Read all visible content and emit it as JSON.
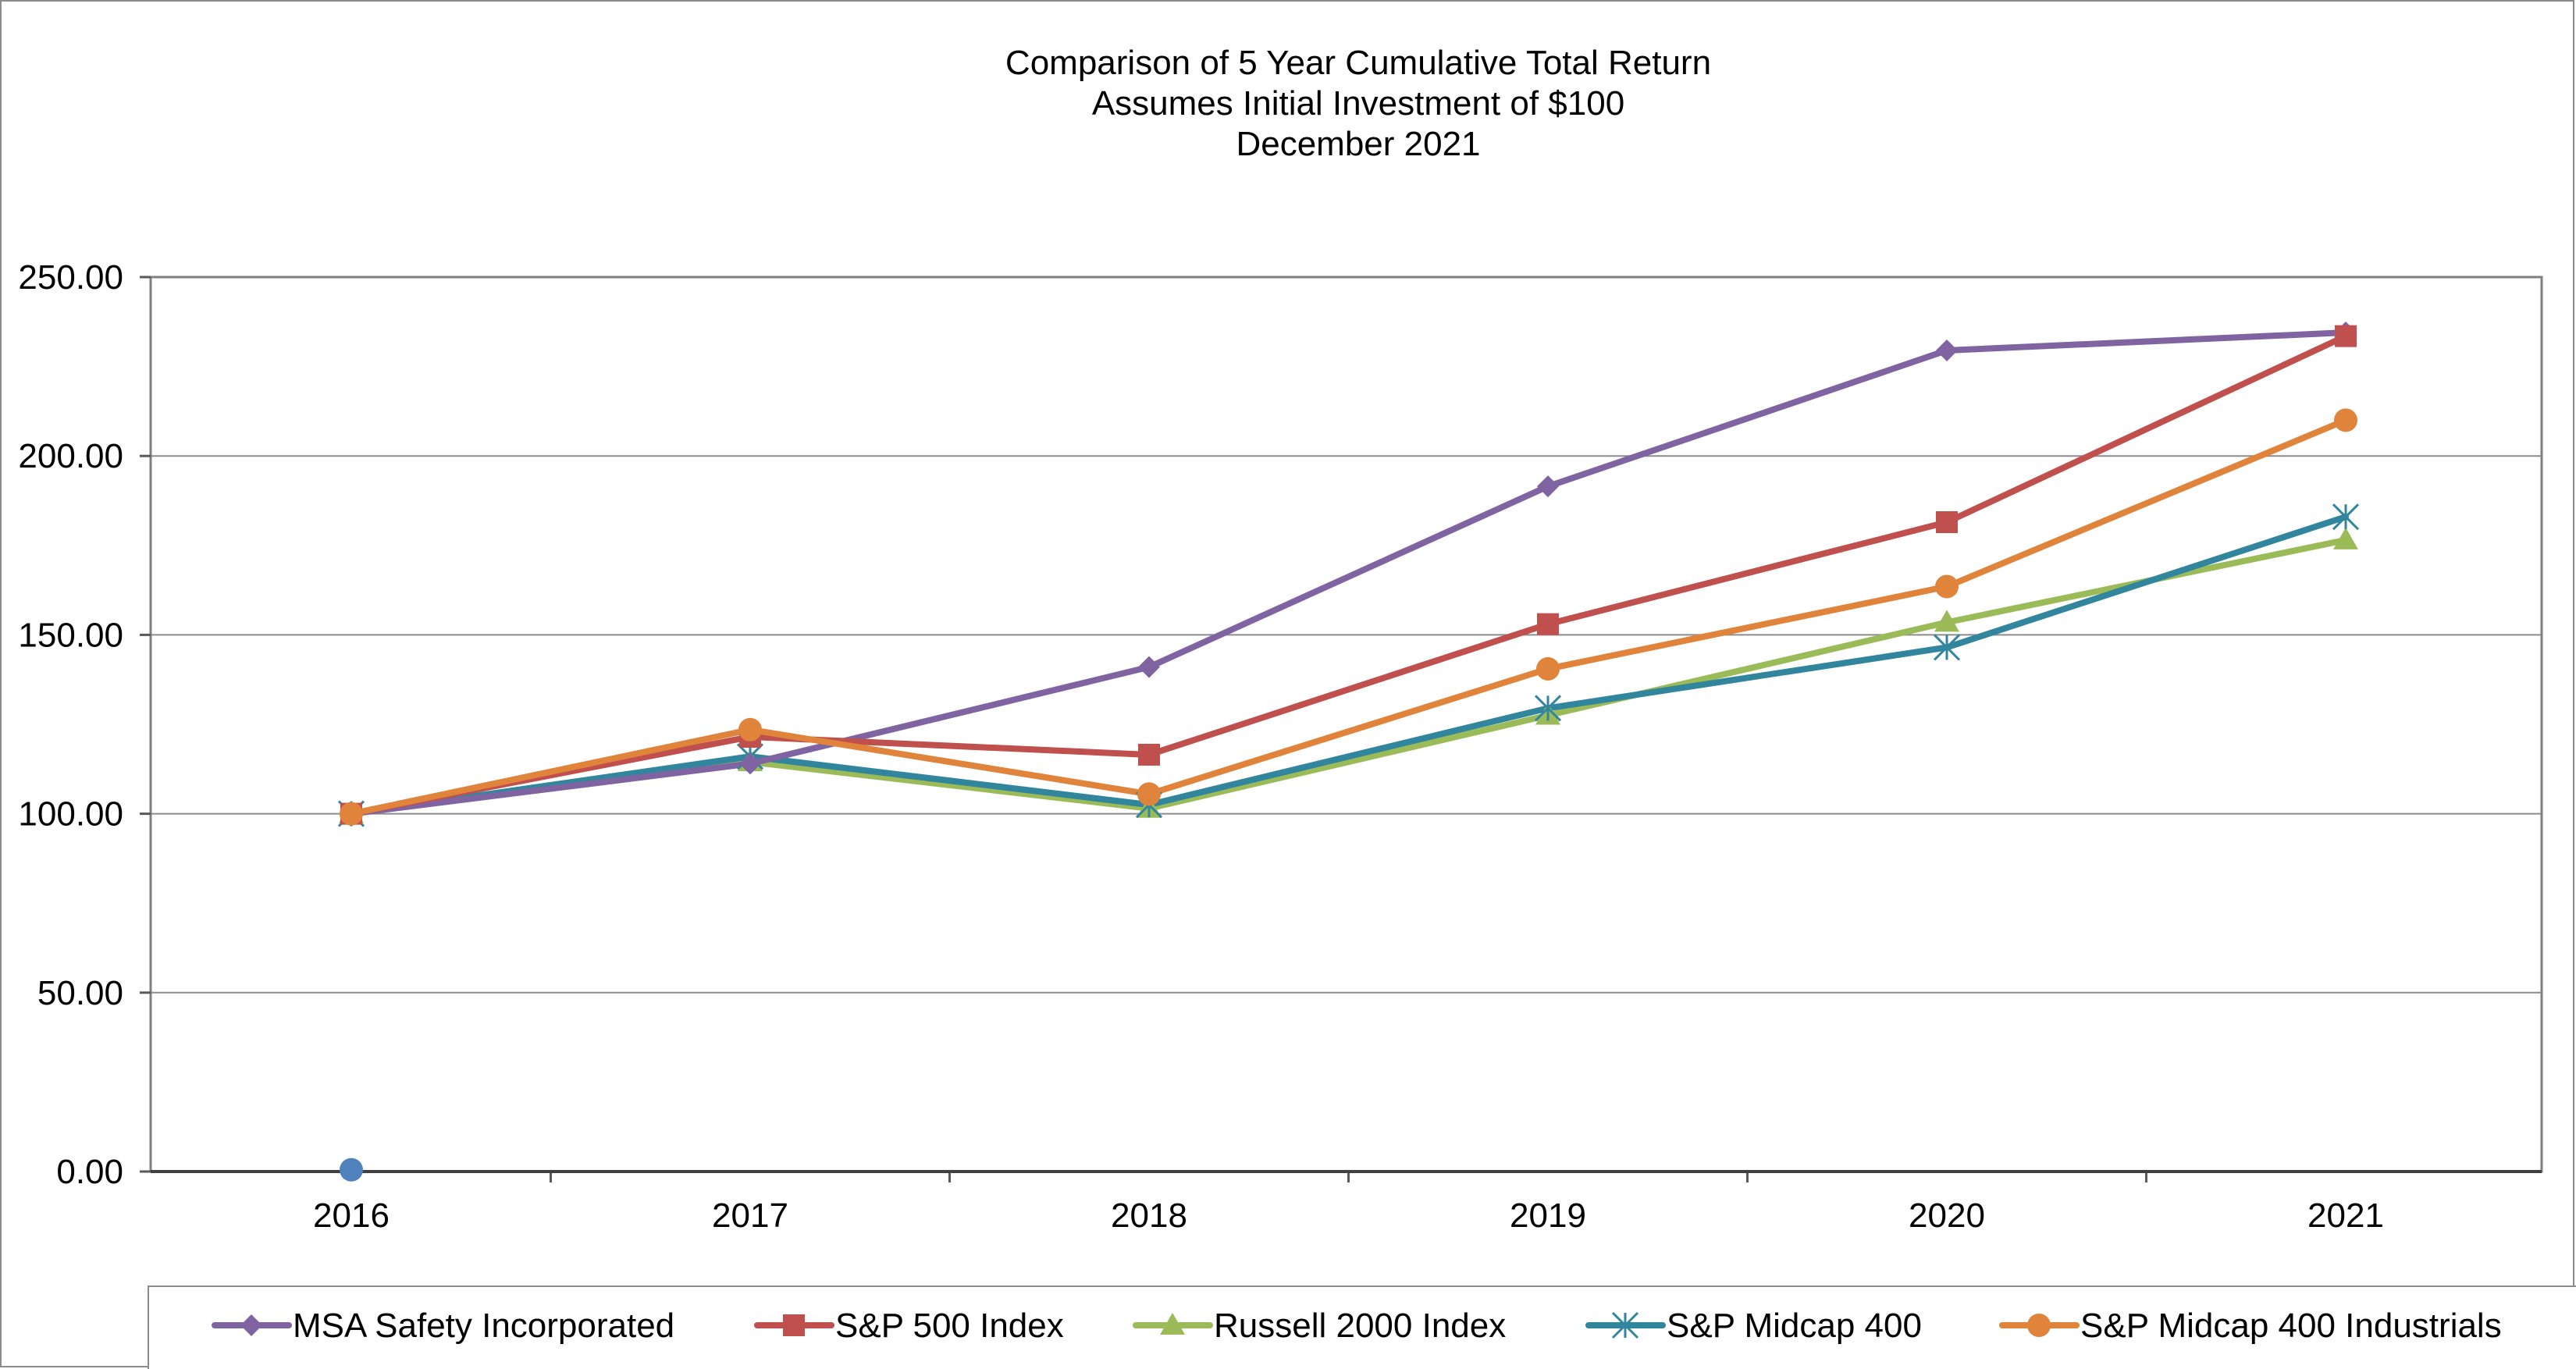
{
  "chart_data": {
    "type": "line",
    "title": "Comparison of 5 Year Cumulative Total Return",
    "subtitle": [
      "Assumes Initial Investment of $100",
      "December 2021"
    ],
    "xlabel": "",
    "ylabel": "",
    "x": [
      "2016",
      "2017",
      "2018",
      "2019",
      "2020",
      "2021"
    ],
    "ylim": [
      0,
      250
    ],
    "yticks": [
      "0.00",
      "50.00",
      "100.00",
      "150.00",
      "200.00",
      "250.00"
    ],
    "grid": true,
    "legend_position": "bottom",
    "series": [
      {
        "name": "MSA Safety Incorporated",
        "color": "#8064a2",
        "marker": "diamond",
        "values": [
          100,
          114,
          141,
          191.5,
          229.5,
          234.5
        ]
      },
      {
        "name": "S&P 500 Index",
        "color": "#c0504d",
        "marker": "square",
        "values": [
          100,
          121.5,
          116.5,
          153,
          181.5,
          233.5
        ]
      },
      {
        "name": "Russell 2000 Index",
        "color": "#9bbb59",
        "marker": "triangle",
        "values": [
          100,
          114.5,
          101.5,
          127.5,
          153.5,
          176.5
        ]
      },
      {
        "name": "S&P Midcap 400",
        "color": "#31859c",
        "marker": "asterisk",
        "values": [
          100,
          116,
          102.5,
          129.5,
          146.5,
          183
        ]
      },
      {
        "name": "S&P Midcap 400 Industrials",
        "color": "#e0833b",
        "marker": "circle",
        "values": [
          100,
          123.5,
          105.5,
          140.5,
          163.5,
          210
        ]
      }
    ],
    "annotations": [
      {
        "label": "",
        "x": "2016",
        "y": 0.5,
        "color": "#4f81bd",
        "marker": "circle"
      }
    ]
  }
}
